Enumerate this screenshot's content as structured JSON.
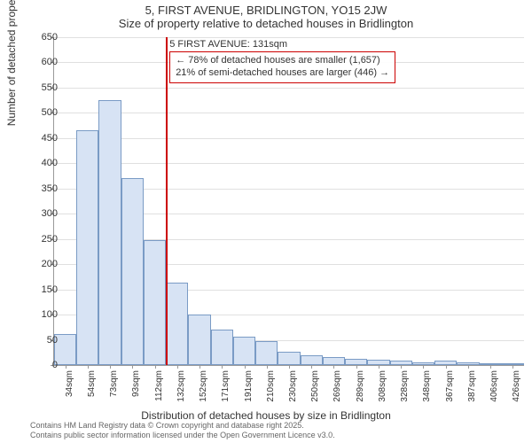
{
  "title": {
    "main": "5, FIRST AVENUE, BRIDLINGTON, YO15 2JW",
    "sub": "Size of property relative to detached houses in Bridlington"
  },
  "chart": {
    "type": "bar",
    "ylabel": "Number of detached properties",
    "xlabel": "Distribution of detached houses by size in Bridlington",
    "ylim_max": 650,
    "ytick_step": 50,
    "bar_fill": "#d7e3f4",
    "bar_border": "#7a9bc5",
    "grid_color": "#e0e0e0",
    "axis_color": "#999999",
    "background_color": "#ffffff",
    "label_fontsize": 12,
    "tick_fontsize": 11,
    "bars": [
      {
        "label": "34sqm",
        "value": 62
      },
      {
        "label": "54sqm",
        "value": 465
      },
      {
        "label": "73sqm",
        "value": 525
      },
      {
        "label": "93sqm",
        "value": 370
      },
      {
        "label": "112sqm",
        "value": 248
      },
      {
        "label": "132sqm",
        "value": 164
      },
      {
        "label": "152sqm",
        "value": 100
      },
      {
        "label": "171sqm",
        "value": 70
      },
      {
        "label": "191sqm",
        "value": 56
      },
      {
        "label": "210sqm",
        "value": 48
      },
      {
        "label": "230sqm",
        "value": 26
      },
      {
        "label": "250sqm",
        "value": 20
      },
      {
        "label": "269sqm",
        "value": 16
      },
      {
        "label": "289sqm",
        "value": 12
      },
      {
        "label": "308sqm",
        "value": 10
      },
      {
        "label": "328sqm",
        "value": 8
      },
      {
        "label": "348sqm",
        "value": 6
      },
      {
        "label": "367sqm",
        "value": 8
      },
      {
        "label": "387sqm",
        "value": 6
      },
      {
        "label": "406sqm",
        "value": 4
      },
      {
        "label": "426sqm",
        "value": 4
      }
    ],
    "marker": {
      "at_bar_index": 5,
      "color": "#cc0000"
    },
    "annotation": {
      "line1": "5 FIRST AVENUE: 131sqm",
      "line2": "← 78% of detached houses are smaller (1,657)",
      "line3": "21% of semi-detached houses are larger (446) →",
      "border_color": "#cc0000"
    }
  },
  "footnote": {
    "line1": "Contains HM Land Registry data © Crown copyright and database right 2025.",
    "line2": "Contains public sector information licensed under the Open Government Licence v3.0."
  }
}
